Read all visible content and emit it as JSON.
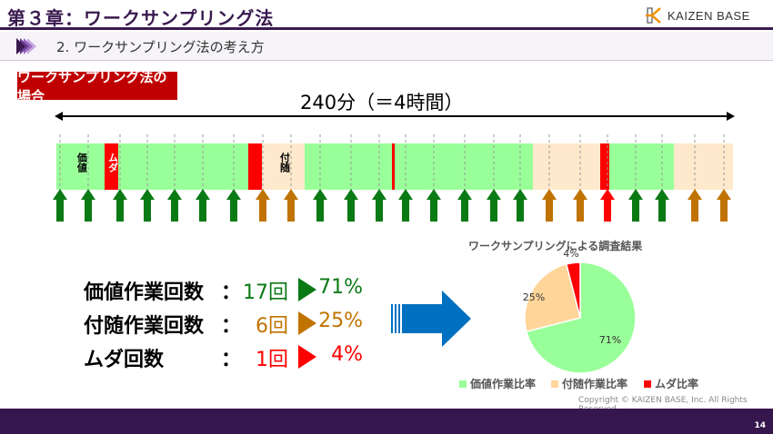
{
  "header": {
    "title": "第３章：ワークサンプリング法",
    "logo_text": "KAIZEN BASE",
    "subtitle": "2. ワークサンプリング法の考え方"
  },
  "tag": "ワークサンプリング法の場合",
  "duration": "240分（＝4時間）",
  "colors": {
    "value": "#99ff99",
    "incidental": "#ffe9cc",
    "waste": "#ff0000",
    "arrow_value": "#0a7a14",
    "arrow_incidental": "#c07300",
    "arrow_waste": "#ff0000",
    "brand": "#3a1a4f",
    "pie_incidental": "#ffd59a"
  },
  "timeline": {
    "segments": [
      {
        "type": "value",
        "minutes": 17,
        "label": "価値"
      },
      {
        "type": "waste",
        "minutes": 5,
        "label": "ムダ"
      },
      {
        "type": "value",
        "minutes": 46
      },
      {
        "type": "waste",
        "minutes": 5
      },
      {
        "type": "incidental",
        "minutes": 15,
        "label": "付随"
      },
      {
        "type": "value",
        "minutes": 31
      },
      {
        "type": "waste",
        "minutes": 1
      },
      {
        "type": "value",
        "minutes": 49
      },
      {
        "type": "incidental",
        "minutes": 24
      },
      {
        "type": "waste",
        "minutes": 3
      },
      {
        "type": "value",
        "minutes": 23
      },
      {
        "type": "incidental",
        "minutes": 21
      }
    ],
    "samples": [
      "value",
      "value",
      "value",
      "value",
      "value",
      "value",
      "value",
      "incidental",
      "incidental",
      "value",
      "value",
      "value",
      "value",
      "value",
      "value",
      "value",
      "value",
      "incidental",
      "incidental",
      "waste",
      "value",
      "value",
      "incidental",
      "incidental"
    ]
  },
  "stats": [
    {
      "label": "価値作業回数",
      "colon": "：",
      "count": "17回",
      "percent": "71%",
      "color": "#0a7a14"
    },
    {
      "label": "付随作業回数",
      "colon": "：",
      "count": "6回",
      "percent": "25%",
      "color": "#c07300"
    },
    {
      "label": "ムダ回数",
      "colon": "：",
      "count": "1回",
      "percent": "4%",
      "color": "#ff0000"
    }
  ],
  "chart_data": {
    "type": "pie",
    "title": "ワークサンプリングによる調査結果",
    "slices": [
      {
        "name": "価値作業比率",
        "value": 71,
        "label": "71%",
        "color": "#99ff99"
      },
      {
        "name": "付随作業比率",
        "value": 25,
        "label": "25%",
        "color": "#ffd59a"
      },
      {
        "name": "ムダ比率",
        "value": 4,
        "label": "4%",
        "color": "#ff0000"
      }
    ],
    "legend": "bottom"
  },
  "footer": {
    "copyright": "Copyright ©  KAIZEN BASE, Inc.  All Rights Reserved.",
    "page": "14"
  }
}
